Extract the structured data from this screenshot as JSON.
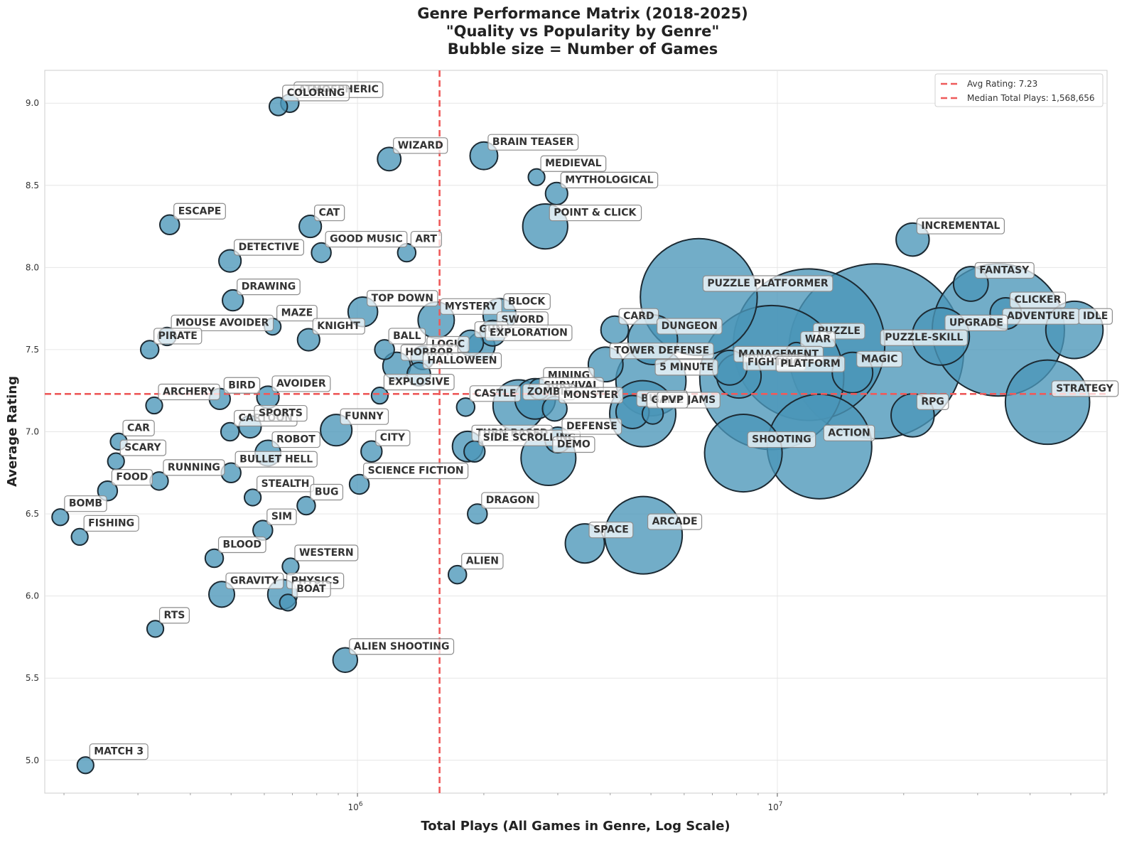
{
  "chart_data": {
    "type": "scatter",
    "title_lines": [
      "Genre Performance Matrix (2018-2025)",
      "\"Quality vs Popularity by Genre\"",
      "Bubble size = Number of Games"
    ],
    "xlabel": "Total Plays (All Games in Genre, Log Scale)",
    "ylabel": "Average Rating",
    "x_scale": "log",
    "xlim": [
      180000,
      61000000
    ],
    "ylim": [
      4.8,
      9.2
    ],
    "x_ticks": [
      {
        "value": 1000000,
        "label": "10^6"
      },
      {
        "value": 10000000,
        "label": "10^7"
      }
    ],
    "y_ticks": [
      "5.0",
      "5.5",
      "6.0",
      "6.5",
      "7.0",
      "7.5",
      "8.0",
      "8.5",
      "9.0"
    ],
    "grid": true,
    "legend_position": "top-right",
    "reference_lines": [
      {
        "kind": "horizontal",
        "value": 7.23,
        "label": "Avg Rating: 7.23"
      },
      {
        "kind": "vertical",
        "value": 1568656,
        "label": "Median Total Plays: 1,568,656"
      }
    ],
    "size_legend": "Number of Games",
    "points": [
      {
        "genre": "ATMOSPHERIC",
        "plays": 690000,
        "rating": 9.0,
        "size": 6
      },
      {
        "genre": "COLORING",
        "plays": 648000,
        "rating": 8.98,
        "size": 6
      },
      {
        "genre": "WIZARD",
        "plays": 1190000,
        "rating": 8.66,
        "size": 10
      },
      {
        "genre": "BRAIN TEASER",
        "plays": 2000000,
        "rating": 8.68,
        "size": 14
      },
      {
        "genre": "MEDIEVAL",
        "plays": 2670000,
        "rating": 8.55,
        "size": 5
      },
      {
        "genre": "MYTHOLOGICAL",
        "plays": 2980000,
        "rating": 8.45,
        "size": 9
      },
      {
        "genre": "ESCAPE",
        "plays": 357000,
        "rating": 8.26,
        "size": 7
      },
      {
        "genre": "CAT",
        "plays": 772000,
        "rating": 8.25,
        "size": 9
      },
      {
        "genre": "POINT & CLICK",
        "plays": 2800000,
        "rating": 8.25,
        "size": 37
      },
      {
        "genre": "INCREMENTAL",
        "plays": 21000000,
        "rating": 8.17,
        "size": 20
      },
      {
        "genre": "DETECTIVE",
        "plays": 497000,
        "rating": 8.04,
        "size": 9
      },
      {
        "genre": "GOOD MUSIC",
        "plays": 820000,
        "rating": 8.09,
        "size": 7
      },
      {
        "genre": "ART",
        "plays": 1310000,
        "rating": 8.09,
        "size": 6
      },
      {
        "genre": "FANTASY",
        "plays": 28900000,
        "rating": 7.9,
        "size": 22
      },
      {
        "genre": "PUZZLE PLATFORMER",
        "plays": 6500000,
        "rating": 7.82,
        "size": 250
      },
      {
        "genre": "DRAWING",
        "plays": 505000,
        "rating": 7.8,
        "size": 8
      },
      {
        "genre": "TOP DOWN",
        "plays": 1030000,
        "rating": 7.73,
        "size": 16
      },
      {
        "genre": "BLOCK",
        "plays": 2180000,
        "rating": 7.71,
        "size": 20
      },
      {
        "genre": "MYSTERY",
        "plays": 1540000,
        "rating": 7.68,
        "size": 24
      },
      {
        "genre": "CLICKER",
        "plays": 35000000,
        "rating": 7.72,
        "size": 18
      },
      {
        "genre": "ADVENTURE",
        "plays": 33600000,
        "rating": 7.62,
        "size": 320
      },
      {
        "genre": "IDLE",
        "plays": 51000000,
        "rating": 7.62,
        "size": 60
      },
      {
        "genre": "MAZE",
        "plays": 628000,
        "rating": 7.64,
        "size": 5
      },
      {
        "genre": "MOUSE AVOIDER",
        "plays": 352000,
        "rating": 7.58,
        "size": 6
      },
      {
        "genre": "SWORD",
        "plays": 2100000,
        "rating": 7.6,
        "size": 12
      },
      {
        "genre": "CARD",
        "plays": 4100000,
        "rating": 7.62,
        "size": 14
      },
      {
        "genre": "UPGRADE",
        "plays": 24500000,
        "rating": 7.58,
        "size": 60
      },
      {
        "genre": "GUN",
        "plays": 1860000,
        "rating": 7.54,
        "size": 12
      },
      {
        "genre": "EXPLORATION",
        "plays": 1970000,
        "rating": 7.52,
        "size": 14
      },
      {
        "genre": "KNIGHT",
        "plays": 765000,
        "rating": 7.56,
        "size": 9
      },
      {
        "genre": "PIRATE",
        "plays": 320000,
        "rating": 7.5,
        "size": 6
      },
      {
        "genre": "BALL",
        "plays": 1160000,
        "rating": 7.5,
        "size": 7
      },
      {
        "genre": "DUNGEON",
        "plays": 5050000,
        "rating": 7.56,
        "size": 45
      },
      {
        "genre": "PUZZLE",
        "plays": 11900000,
        "rating": 7.53,
        "size": 420
      },
      {
        "genre": "WAR",
        "plays": 11100000,
        "rating": 7.48,
        "size": 8
      },
      {
        "genre": "PUZZLE-SKILL",
        "plays": 17200000,
        "rating": 7.49,
        "size": 560
      },
      {
        "genre": "LOGIC",
        "plays": 1430000,
        "rating": 7.45,
        "size": 10
      },
      {
        "genre": "HORROR",
        "plays": 1240000,
        "rating": 7.4,
        "size": 14
      },
      {
        "genre": "HALLOWEEN",
        "plays": 1400000,
        "rating": 7.35,
        "size": 10
      },
      {
        "genre": "TOWER DEFENSE",
        "plays": 3900000,
        "rating": 7.41,
        "size": 22
      },
      {
        "genre": "MANAGEMENT",
        "plays": 7700000,
        "rating": 7.39,
        "size": 22
      },
      {
        "genre": "FIGHTING",
        "plays": 8100000,
        "rating": 7.34,
        "size": 36
      },
      {
        "genre": "PLATFORM",
        "plays": 9700000,
        "rating": 7.33,
        "size": 380
      },
      {
        "genre": "MAGIC",
        "plays": 15100000,
        "rating": 7.36,
        "size": 30
      },
      {
        "genre": "5 MINUTE",
        "plays": 5000000,
        "rating": 7.31,
        "size": 90
      },
      {
        "genre": "MINING",
        "plays": 2710000,
        "rating": 7.26,
        "size": 8
      },
      {
        "genre": "EXPLOSIVE",
        "plays": 1130000,
        "rating": 7.22,
        "size": 5
      },
      {
        "genre": "SURVIVAL",
        "plays": 2650000,
        "rating": 7.2,
        "size": 30
      },
      {
        "genre": "ZOMBIE",
        "plays": 2420000,
        "rating": 7.16,
        "size": 48
      },
      {
        "genre": "CASTLE",
        "plays": 1810000,
        "rating": 7.15,
        "size": 6
      },
      {
        "genre": "ARCHERY",
        "plays": 328000,
        "rating": 7.16,
        "size": 5
      },
      {
        "genre": "BIRD",
        "plays": 470000,
        "rating": 7.2,
        "size": 8
      },
      {
        "genre": "AVOIDER",
        "plays": 612000,
        "rating": 7.21,
        "size": 9
      },
      {
        "genre": "MONSTER",
        "plays": 2950000,
        "rating": 7.14,
        "size": 11
      },
      {
        "genre": "BULLET",
        "plays": 4520000,
        "rating": 7.12,
        "size": 20
      },
      {
        "genre": "GAME JAMS",
        "plays": 4780000,
        "rating": 7.11,
        "size": 80
      },
      {
        "genre": "PVP",
        "plays": 5050000,
        "rating": 7.11,
        "size": 8
      },
      {
        "genre": "STRATEGY",
        "plays": 44000000,
        "rating": 7.18,
        "size": 130
      },
      {
        "genre": "RPG",
        "plays": 21000000,
        "rating": 7.1,
        "size": 34
      },
      {
        "genre": "CAR",
        "plays": 270000,
        "rating": 6.94,
        "size": 5
      },
      {
        "genre": "CARTOON",
        "plays": 497000,
        "rating": 7.0,
        "size": 6
      },
      {
        "genre": "SPORTS",
        "plays": 555000,
        "rating": 7.03,
        "size": 9
      },
      {
        "genre": "FUNNY",
        "plays": 890000,
        "rating": 7.01,
        "size": 18
      },
      {
        "genre": "CITY",
        "plays": 1080000,
        "rating": 6.88,
        "size": 8
      },
      {
        "genre": "ROBOT",
        "plays": 612000,
        "rating": 6.87,
        "size": 12
      },
      {
        "genre": "SCARY",
        "plays": 266000,
        "rating": 6.82,
        "size": 5
      },
      {
        "genre": "TURN BASED",
        "plays": 1830000,
        "rating": 6.91,
        "size": 17
      },
      {
        "genre": "SIDE SCROLLING",
        "plays": 1900000,
        "rating": 6.88,
        "size": 8
      },
      {
        "genre": "DEFENSE",
        "plays": 3000000,
        "rating": 6.95,
        "size": 12
      },
      {
        "genre": "SHOOTING",
        "plays": 8300000,
        "rating": 6.87,
        "size": 110
      },
      {
        "genre": "ACTION",
        "plays": 12600000,
        "rating": 6.91,
        "size": 200
      },
      {
        "genre": "RUNNING",
        "plays": 337000,
        "rating": 6.7,
        "size": 6
      },
      {
        "genre": "BULLET HELL",
        "plays": 500000,
        "rating": 6.75,
        "size": 7
      },
      {
        "genre": "DEMO",
        "plays": 2850000,
        "rating": 6.84,
        "size": 55
      },
      {
        "genre": "FOOD",
        "plays": 254000,
        "rating": 6.64,
        "size": 7
      },
      {
        "genre": "SCIENCE FICTION",
        "plays": 1010000,
        "rating": 6.68,
        "size": 7
      },
      {
        "genre": "STEALTH",
        "plays": 563000,
        "rating": 6.6,
        "size": 5
      },
      {
        "genre": "BUG",
        "plays": 755000,
        "rating": 6.55,
        "size": 6
      },
      {
        "genre": "DRAGON",
        "plays": 1930000,
        "rating": 6.5,
        "size": 7
      },
      {
        "genre": "BOMB",
        "plays": 196000,
        "rating": 6.48,
        "size": 5
      },
      {
        "genre": "SIM",
        "plays": 595000,
        "rating": 6.4,
        "size": 7
      },
      {
        "genre": "FISHING",
        "plays": 218000,
        "rating": 6.36,
        "size": 5
      },
      {
        "genre": "SPACE",
        "plays": 3480000,
        "rating": 6.32,
        "size": 28
      },
      {
        "genre": "ARCADE",
        "plays": 4800000,
        "rating": 6.37,
        "size": 110
      },
      {
        "genre": "BLOOD",
        "plays": 456000,
        "rating": 6.23,
        "size": 6
      },
      {
        "genre": "WESTERN",
        "plays": 693000,
        "rating": 6.18,
        "size": 5
      },
      {
        "genre": "ALIEN",
        "plays": 1730000,
        "rating": 6.13,
        "size": 6
      },
      {
        "genre": "GRAVITY",
        "plays": 475000,
        "rating": 6.01,
        "size": 12
      },
      {
        "genre": "PHYSICS",
        "plays": 663000,
        "rating": 6.01,
        "size": 16
      },
      {
        "genre": "BOAT",
        "plays": 683000,
        "rating": 5.96,
        "size": 5
      },
      {
        "genre": "RTS",
        "plays": 330000,
        "rating": 5.8,
        "size": 5
      },
      {
        "genre": "ALIEN SHOOTING",
        "plays": 935000,
        "rating": 5.61,
        "size": 11
      },
      {
        "genre": "MATCH 3",
        "plays": 225000,
        "rating": 4.97,
        "size": 5
      }
    ]
  }
}
